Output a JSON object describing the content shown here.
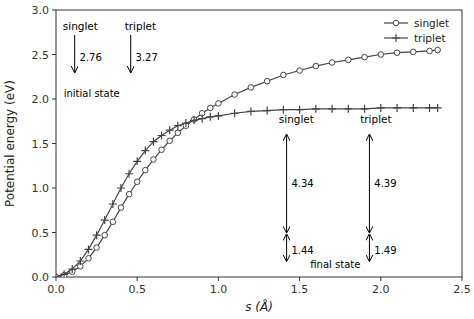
{
  "chart_data": {
    "type": "line",
    "title": "",
    "xlabel": "s (Å)",
    "ylabel": "Potential energy (eV)",
    "xlim": [
      0,
      2.5
    ],
    "ylim": [
      0,
      3.0
    ],
    "xticks": [
      {
        "value": 0,
        "label": "0.0"
      },
      0.5,
      {
        "value": 1.0,
        "label": "1.0"
      },
      1.5,
      {
        "value": 2.0,
        "label": "2.0"
      },
      2.5
    ],
    "yticks": [
      {
        "value": 0,
        "label": "0.0"
      },
      0.5,
      {
        "value": 1.0,
        "label": "1.0"
      },
      1.5,
      {
        "value": 2.0,
        "label": "2.0"
      },
      2.5,
      {
        "value": 3.0,
        "label": "3.0"
      }
    ],
    "x": [
      0.0,
      0.05,
      0.1,
      0.15,
      0.2,
      0.25,
      0.3,
      0.35,
      0.4,
      0.45,
      0.5,
      0.55,
      0.6,
      0.65,
      0.7,
      0.75,
      0.8,
      0.85,
      0.9,
      0.95,
      1.0,
      1.1,
      1.2,
      1.3,
      1.4,
      1.5,
      1.6,
      1.7,
      1.8,
      1.9,
      2.0,
      2.1,
      2.2,
      2.3,
      2.35
    ],
    "series": [
      {
        "name": "singlet",
        "color": "#444444",
        "marker": "circle",
        "values": [
          0.0,
          0.02,
          0.06,
          0.12,
          0.21,
          0.33,
          0.47,
          0.62,
          0.78,
          0.93,
          1.07,
          1.2,
          1.32,
          1.43,
          1.53,
          1.62,
          1.7,
          1.77,
          1.84,
          1.9,
          1.95,
          2.05,
          2.13,
          2.2,
          2.27,
          2.32,
          2.37,
          2.41,
          2.44,
          2.47,
          2.5,
          2.52,
          2.53,
          2.54,
          2.55
        ]
      },
      {
        "name": "triplet",
        "color": "#444444",
        "marker": "plus",
        "values": [
          0.0,
          0.03,
          0.09,
          0.18,
          0.31,
          0.47,
          0.64,
          0.82,
          1.0,
          1.16,
          1.3,
          1.42,
          1.52,
          1.59,
          1.65,
          1.7,
          1.73,
          1.76,
          1.78,
          1.8,
          1.81,
          1.84,
          1.86,
          1.87,
          1.88,
          1.88,
          1.89,
          1.89,
          1.89,
          1.89,
          1.9,
          1.9,
          1.9,
          1.9,
          1.9
        ]
      }
    ],
    "grid": false,
    "legend": "upper right",
    "annotations": [
      "singlet",
      "triplet",
      "initial state",
      "2.76",
      "3.27",
      "singlet",
      "triplet",
      "final state",
      "4.34",
      "1.44",
      "4.39",
      "1.49"
    ]
  }
}
